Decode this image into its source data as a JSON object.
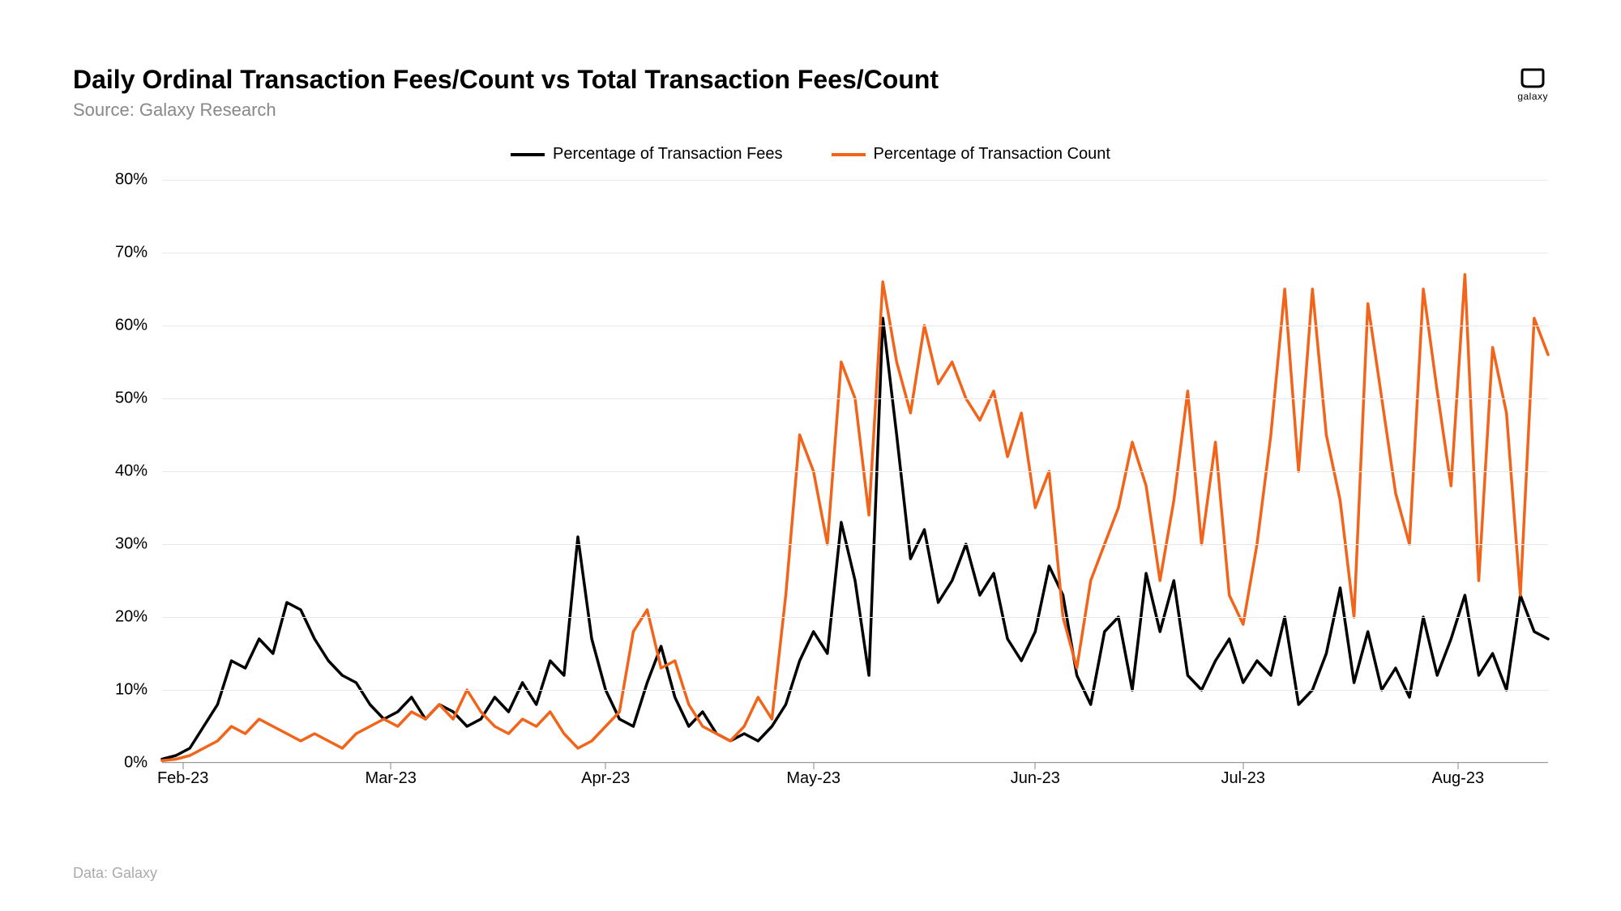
{
  "chart": {
    "type": "line",
    "title": "Daily Ordinal Transaction Fees/Count vs Total Transaction Fees/Count",
    "subtitle": "Source: Galaxy Research",
    "footer": "Data: Galaxy",
    "logo_label": "galaxy",
    "background_color": "#ffffff",
    "grid_color": "#e8e8e8",
    "axis_color": "#999999",
    "title_fontsize": 32,
    "subtitle_fontsize": 22,
    "tick_fontsize": 20,
    "legend_fontsize": 20,
    "line_width": 3.5,
    "y_axis": {
      "min": 0,
      "max": 80,
      "tick_step": 10,
      "suffix": "%",
      "ticks": [
        0,
        10,
        20,
        30,
        40,
        50,
        60,
        70,
        80
      ]
    },
    "x_axis": {
      "labels": [
        "Feb-23",
        "Mar-23",
        "Apr-23",
        "May-23",
        "Jun-23",
        "Jul-23",
        "Aug-23"
      ],
      "positions_pct": [
        1.5,
        16.5,
        32,
        47,
        63,
        78,
        93.5
      ]
    },
    "legend": [
      {
        "label": "Percentage of Transaction Fees",
        "color": "#000000"
      },
      {
        "label": "Percentage of Transaction Count",
        "color": "#f26419"
      }
    ],
    "series": [
      {
        "name": "Percentage of Transaction Fees",
        "color": "#000000",
        "x_pct": [
          0,
          1,
          2,
          3,
          4,
          5,
          6,
          7,
          8,
          9,
          10,
          11,
          12,
          13,
          14,
          15,
          16,
          17,
          18,
          19,
          20,
          21,
          22,
          23,
          24,
          25,
          26,
          27,
          28,
          29,
          30,
          31,
          32,
          33,
          34,
          35,
          36,
          37,
          38,
          39,
          40,
          41,
          42,
          43,
          44,
          45,
          46,
          47,
          48,
          49,
          50,
          51,
          52,
          53,
          54,
          55,
          56,
          57,
          58,
          59,
          60,
          61,
          62,
          63,
          64,
          65,
          66,
          67,
          68,
          69,
          70,
          71,
          72,
          73,
          74,
          75,
          76,
          77,
          78,
          79,
          80,
          81,
          82,
          83,
          84,
          85,
          86,
          87,
          88,
          89,
          90,
          91,
          92,
          93,
          94,
          95,
          96,
          97,
          98,
          99,
          100
        ],
        "y": [
          0.5,
          1,
          2,
          5,
          8,
          14,
          13,
          17,
          15,
          22,
          21,
          17,
          14,
          12,
          11,
          8,
          6,
          7,
          9,
          6,
          8,
          7,
          5,
          6,
          9,
          7,
          11,
          8,
          14,
          12,
          31,
          17,
          10,
          6,
          5,
          11,
          16,
          9,
          5,
          7,
          4,
          3,
          4,
          3,
          5,
          8,
          14,
          18,
          15,
          33,
          25,
          12,
          61,
          45,
          28,
          32,
          22,
          25,
          30,
          23,
          26,
          17,
          14,
          18,
          27,
          23,
          12,
          8,
          18,
          20,
          10,
          26,
          18,
          25,
          12,
          10,
          14,
          17,
          11,
          14,
          12,
          20,
          8,
          10,
          15,
          24,
          11,
          18,
          10,
          13,
          9,
          20,
          12,
          17,
          23,
          12,
          15,
          10,
          23,
          18,
          17
        ]
      },
      {
        "name": "Percentage of Transaction Count",
        "color": "#f26419",
        "x_pct": [
          0,
          1,
          2,
          3,
          4,
          5,
          6,
          7,
          8,
          9,
          10,
          11,
          12,
          13,
          14,
          15,
          16,
          17,
          18,
          19,
          20,
          21,
          22,
          23,
          24,
          25,
          26,
          27,
          28,
          29,
          30,
          31,
          32,
          33,
          34,
          35,
          36,
          37,
          38,
          39,
          40,
          41,
          42,
          43,
          44,
          45,
          46,
          47,
          48,
          49,
          50,
          51,
          52,
          53,
          54,
          55,
          56,
          57,
          58,
          59,
          60,
          61,
          62,
          63,
          64,
          65,
          66,
          67,
          68,
          69,
          70,
          71,
          72,
          73,
          74,
          75,
          76,
          77,
          78,
          79,
          80,
          81,
          82,
          83,
          84,
          85,
          86,
          87,
          88,
          89,
          90,
          91,
          92,
          93,
          94,
          95,
          96,
          97,
          98,
          99,
          100
        ],
        "y": [
          0.3,
          0.5,
          1,
          2,
          3,
          5,
          4,
          6,
          5,
          4,
          3,
          4,
          3,
          2,
          4,
          5,
          6,
          5,
          7,
          6,
          8,
          6,
          10,
          7,
          5,
          4,
          6,
          5,
          7,
          4,
          2,
          3,
          5,
          7,
          18,
          21,
          13,
          14,
          8,
          5,
          4,
          3,
          5,
          9,
          6,
          23,
          45,
          40,
          30,
          55,
          50,
          34,
          66,
          55,
          48,
          60,
          52,
          55,
          50,
          47,
          51,
          42,
          48,
          35,
          40,
          20,
          13,
          25,
          30,
          35,
          44,
          38,
          25,
          36,
          51,
          30,
          44,
          23,
          19,
          30,
          45,
          65,
          40,
          65,
          45,
          36,
          20,
          63,
          50,
          37,
          30,
          65,
          51,
          38,
          67,
          25,
          57,
          48,
          23,
          61,
          56
        ]
      }
    ]
  }
}
